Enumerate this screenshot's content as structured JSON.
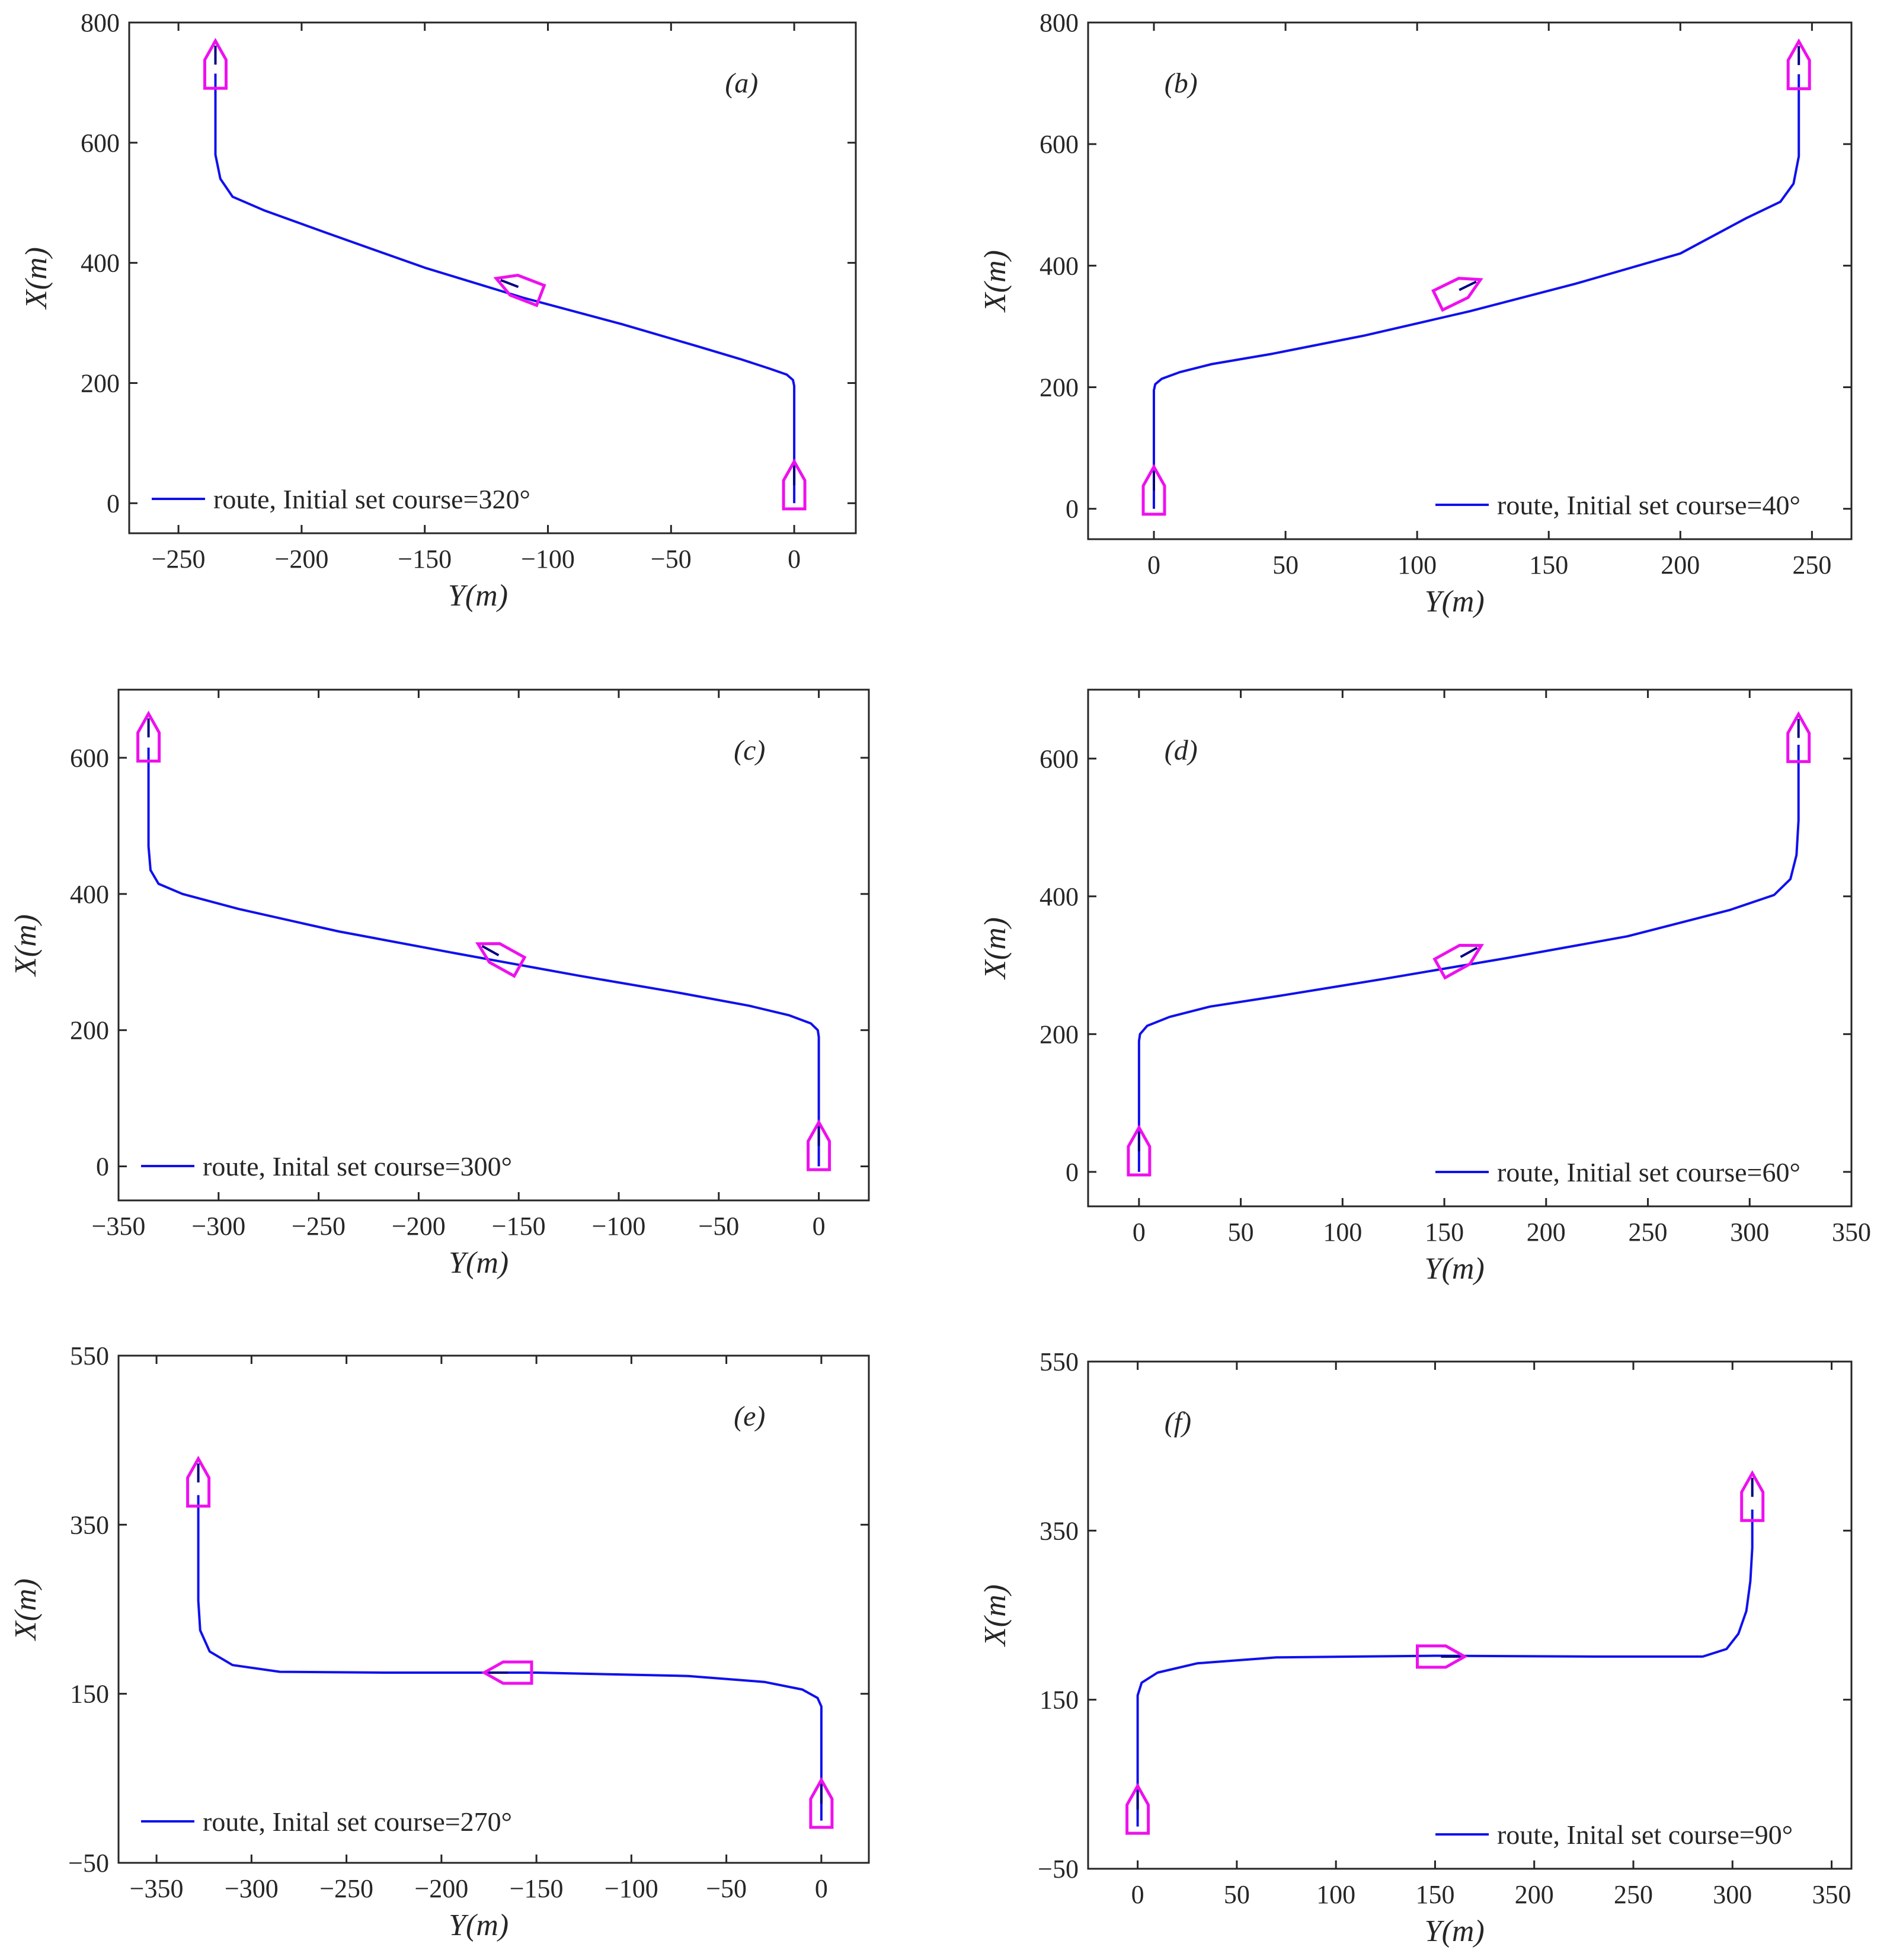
{
  "chart_data": [
    {
      "panel_label": "(a)",
      "type": "line",
      "xlabel": "Y(m)",
      "ylabel": "X(m)",
      "xlim": [
        -270,
        25
      ],
      "ylim": [
        -50,
        800
      ],
      "xticks": [
        -250,
        -200,
        -150,
        -100,
        -50,
        0
      ],
      "yticks": [
        0,
        200,
        400,
        600,
        800
      ],
      "xtick_labels": [
        "−250",
        "−200",
        "−150",
        "−100",
        "−50",
        "0"
      ],
      "ytick_labels": [
        "0",
        "200",
        "400",
        "600",
        "800"
      ],
      "legend": "route, Initial set course=320°",
      "legend_position": "bottom-left",
      "series": [
        {
          "name": "route",
          "color": "#1010ee",
          "x": [
            0,
            0,
            -0.5,
            -3,
            -10,
            -22,
            -40,
            -70,
            -110,
            -150,
            -190,
            -215,
            -228,
            -233,
            -235,
            -235
          ],
          "y": [
            0,
            195,
            205,
            214,
            224,
            240,
            262,
            298,
            342,
            392,
            450,
            487,
            510,
            540,
            580,
            715
          ]
        }
      ],
      "ships": [
        {
          "x": 0,
          "y": 30,
          "heading": 0
        },
        {
          "x": -112,
          "y": 360,
          "heading": -69
        },
        {
          "x": -235,
          "y": 730,
          "heading": 0
        }
      ]
    },
    {
      "panel_label": "(b)",
      "type": "line",
      "xlabel": "Y(m)",
      "ylabel": "X(m)",
      "xlim": [
        -25,
        265
      ],
      "ylim": [
        -50,
        800
      ],
      "xticks": [
        0,
        50,
        100,
        150,
        200,
        250
      ],
      "yticks": [
        0,
        200,
        400,
        600,
        800
      ],
      "xtick_labels": [
        "0",
        "50",
        "100",
        "150",
        "200",
        "250"
      ],
      "ytick_labels": [
        "0",
        "200",
        "400",
        "600",
        "800"
      ],
      "legend": "route, Initial set course=40°",
      "legend_position": "bottom-right",
      "series": [
        {
          "name": "route",
          "color": "#1010ee",
          "x": [
            0,
            0,
            0.5,
            3,
            10,
            22,
            45,
            80,
            120,
            160,
            200,
            225,
            238,
            243,
            245,
            245
          ],
          "y": [
            0,
            195,
            205,
            214,
            225,
            238,
            255,
            285,
            325,
            370,
            420,
            478,
            505,
            535,
            580,
            715
          ]
        }
      ],
      "ships": [
        {
          "x": 0,
          "y": 30,
          "heading": 0
        },
        {
          "x": 116,
          "y": 360,
          "heading": 64
        },
        {
          "x": 245,
          "y": 730,
          "heading": 0
        }
      ]
    },
    {
      "panel_label": "(c)",
      "type": "line",
      "xlabel": "Y(m)",
      "ylabel": "X(m)",
      "xlim": [
        -350,
        25
      ],
      "ylim": [
        -50,
        700
      ],
      "xticks": [
        -350,
        -300,
        -250,
        -200,
        -150,
        -100,
        -50,
        0
      ],
      "yticks": [
        0,
        200,
        400,
        600
      ],
      "xtick_labels": [
        "−350",
        "−300",
        "−250",
        "−200",
        "−150",
        "−100",
        "−50",
        "0"
      ],
      "ytick_labels": [
        "0",
        "200",
        "400",
        "600"
      ],
      "legend": "route, Inital set course=300°",
      "legend_position": "bottom-left",
      "series": [
        {
          "name": "route",
          "color": "#1010ee",
          "x": [
            0,
            0,
            -0.5,
            -4,
            -15,
            -35,
            -70,
            -120,
            -180,
            -240,
            -290,
            -318,
            -330,
            -334,
            -335,
            -335
          ],
          "y": [
            0,
            190,
            200,
            210,
            222,
            236,
            255,
            280,
            312,
            345,
            378,
            400,
            415,
            435,
            470,
            615
          ]
        }
      ],
      "ships": [
        {
          "x": 0,
          "y": 30,
          "heading": 0
        },
        {
          "x": -160,
          "y": 310,
          "heading": -61
        },
        {
          "x": -335,
          "y": 630,
          "heading": 0
        }
      ]
    },
    {
      "panel_label": "(d)",
      "type": "line",
      "xlabel": "Y(m)",
      "ylabel": "X(m)",
      "xlim": [
        -25,
        350
      ],
      "ylim": [
        -50,
        700
      ],
      "xticks": [
        0,
        50,
        100,
        150,
        200,
        250,
        300,
        350
      ],
      "yticks": [
        0,
        200,
        400,
        600
      ],
      "xtick_labels": [
        "0",
        "50",
        "100",
        "150",
        "200",
        "250",
        "300",
        "350"
      ],
      "ytick_labels": [
        "0",
        "200",
        "400",
        "600"
      ],
      "legend": "route, Initial set course=60°",
      "legend_position": "bottom-right",
      "series": [
        {
          "name": "route",
          "color": "#1010ee",
          "x": [
            0,
            0,
            0.5,
            4,
            15,
            35,
            70,
            120,
            180,
            240,
            290,
            312,
            320,
            323,
            324,
            324
          ],
          "y": [
            0,
            190,
            200,
            212,
            225,
            240,
            256,
            280,
            310,
            342,
            380,
            402,
            425,
            460,
            510,
            620
          ]
        }
      ],
      "ships": [
        {
          "x": 0,
          "y": 30,
          "heading": 0
        },
        {
          "x": 158,
          "y": 312,
          "heading": 61
        },
        {
          "x": 324,
          "y": 630,
          "heading": 0
        }
      ]
    },
    {
      "panel_label": "(e)",
      "type": "line",
      "xlabel": "Y(m)",
      "ylabel": "X(m)",
      "xlim": [
        -370,
        25
      ],
      "ylim": [
        -50,
        550
      ],
      "xticks": [
        -350,
        -300,
        -250,
        -200,
        -150,
        -100,
        -50,
        0
      ],
      "yticks": [
        -50,
        150,
        350,
        550
      ],
      "xtick_labels": [
        "−350",
        "−300",
        "−250",
        "−200",
        "−150",
        "−100",
        "−50",
        "0"
      ],
      "ytick_labels": [
        "−50",
        "150",
        "350",
        "550"
      ],
      "legend": "route, Inital set course=270°",
      "legend_position": "bottom-left",
      "series": [
        {
          "name": "route",
          "color": "#1010ee",
          "x": [
            0,
            0,
            -2,
            -10,
            -30,
            -70,
            -150,
            -230,
            -285,
            -310,
            -322,
            -327,
            -328,
            -328
          ],
          "y": [
            0,
            135,
            145,
            155,
            164,
            171,
            175,
            175,
            176,
            184,
            200,
            225,
            260,
            385
          ]
        }
      ],
      "ships": [
        {
          "x": 0,
          "y": 20,
          "heading": 0
        },
        {
          "x": -165,
          "y": 175,
          "heading": -90
        },
        {
          "x": -328,
          "y": 400,
          "heading": 0
        }
      ]
    },
    {
      "panel_label": "(f)",
      "type": "line",
      "xlabel": "Y(m)",
      "ylabel": "X(m)",
      "xlim": [
        -25,
        360
      ],
      "ylim": [
        -50,
        550
      ],
      "xticks": [
        0,
        50,
        100,
        150,
        200,
        250,
        300,
        350
      ],
      "yticks": [
        -50,
        150,
        350,
        550
      ],
      "xtick_labels": [
        "0",
        "50",
        "100",
        "150",
        "200",
        "250",
        "300",
        "350"
      ],
      "ytick_labels": [
        "−50",
        "150",
        "350",
        "550"
      ],
      "legend": "route, Inital set course=90°",
      "legend_position": "bottom-right",
      "series": [
        {
          "name": "route",
          "color": "#1010ee",
          "x": [
            0,
            0,
            2,
            10,
            30,
            70,
            150,
            230,
            285,
            297,
            303,
            307,
            309,
            310,
            310
          ],
          "y": [
            0,
            155,
            170,
            182,
            193,
            200,
            202,
            201,
            201,
            210,
            228,
            255,
            290,
            330,
            375
          ]
        }
      ],
      "ships": [
        {
          "x": 0,
          "y": 20,
          "heading": 0
        },
        {
          "x": 153,
          "y": 201,
          "heading": 90
        },
        {
          "x": 310,
          "y": 390,
          "heading": 0
        }
      ]
    }
  ],
  "colors": {
    "route": "#1010ee",
    "ship": "#ee10ee",
    "ship_mast": "#000080",
    "axes": "#262626"
  }
}
